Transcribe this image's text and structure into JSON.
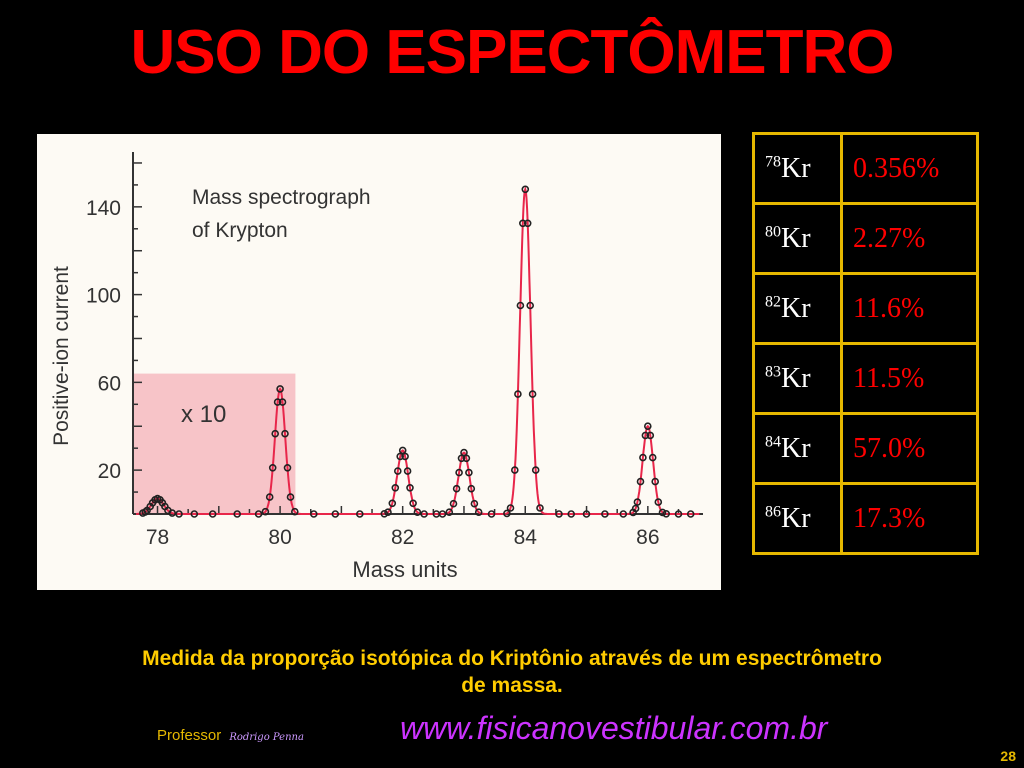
{
  "slide": {
    "title": "USO DO ESPECTÔMETRO",
    "caption_line1": "Medida da proporção isotópica do Kriptônio através de um espectrômetro",
    "caption_line2": "de massa.",
    "professor_label": "Professor",
    "professor_signature": "Rodrigo Penna",
    "website": "www.fisicanovestibular.com.br",
    "page_number": "28"
  },
  "figure": {
    "title_line1": "Mass spectrograph",
    "title_line2": "of Krypton",
    "magnification_label": "x 10",
    "colors": {
      "highlight": "#f7c4c8",
      "curve": "#e8264a",
      "points": "#222222"
    }
  },
  "chart_data": {
    "type": "line",
    "title": "Mass spectrograph of Krypton",
    "xlabel": "Mass units",
    "ylabel": "Positive-ion current",
    "x_ticks": [
      "78",
      "80",
      "82",
      "84",
      "86"
    ],
    "y_ticks": [
      "20",
      "60",
      "100",
      "140"
    ],
    "xlim": [
      77.6,
      86.9
    ],
    "ylim": [
      0,
      165
    ],
    "highlight_region": {
      "x_range": [
        77.6,
        80.25
      ],
      "y_max": 64,
      "label": "x 10"
    },
    "peaks": [
      {
        "mass": 78,
        "height": 7,
        "width": 0.1
      },
      {
        "mass": 80,
        "height": 57,
        "width": 0.085
      },
      {
        "mass": 82,
        "height": 29,
        "width": 0.09
      },
      {
        "mass": 83,
        "height": 28,
        "width": 0.09
      },
      {
        "mass": 84,
        "height": 148,
        "width": 0.085
      },
      {
        "mass": 86,
        "height": 40,
        "width": 0.085
      }
    ]
  },
  "isotopes": [
    {
      "mass": "78",
      "symbol": "Kr",
      "abundance": "0.356%"
    },
    {
      "mass": "80",
      "symbol": "Kr",
      "abundance": "2.27%"
    },
    {
      "mass": "82",
      "symbol": "Kr",
      "abundance": "11.6%"
    },
    {
      "mass": "83",
      "symbol": "Kr",
      "abundance": "11.5%"
    },
    {
      "mass": "84",
      "symbol": "Kr",
      "abundance": "57.0%"
    },
    {
      "mass": "86",
      "symbol": "Kr",
      "abundance": "17.3%"
    }
  ]
}
